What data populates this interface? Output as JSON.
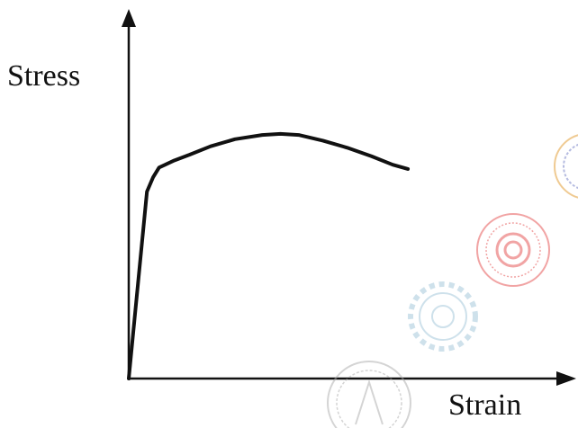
{
  "chart_data": {
    "type": "line",
    "title": "",
    "xlabel": "Strain",
    "ylabel": "Stress",
    "xlim": [
      0,
      100
    ],
    "ylim": [
      0,
      100
    ],
    "grid": false,
    "legend": "none",
    "series": [
      {
        "x": [
          0,
          3,
          6,
          8,
          10,
          12,
          15,
          20,
          27,
          35,
          44,
          50,
          56,
          64,
          72,
          80,
          87,
          92
        ],
        "y": [
          0,
          33,
          66,
          71,
          74.5,
          75.5,
          77,
          79,
          82,
          84.5,
          86,
          86.4,
          86,
          84,
          81.5,
          78.5,
          75.5,
          74
        ]
      }
    ],
    "colors": {
      "curve": "#111111",
      "axes": "#111111"
    }
  },
  "watermarks": [
    "seal-top-right",
    "seal-red",
    "gear-seal",
    "seal-bottom"
  ]
}
